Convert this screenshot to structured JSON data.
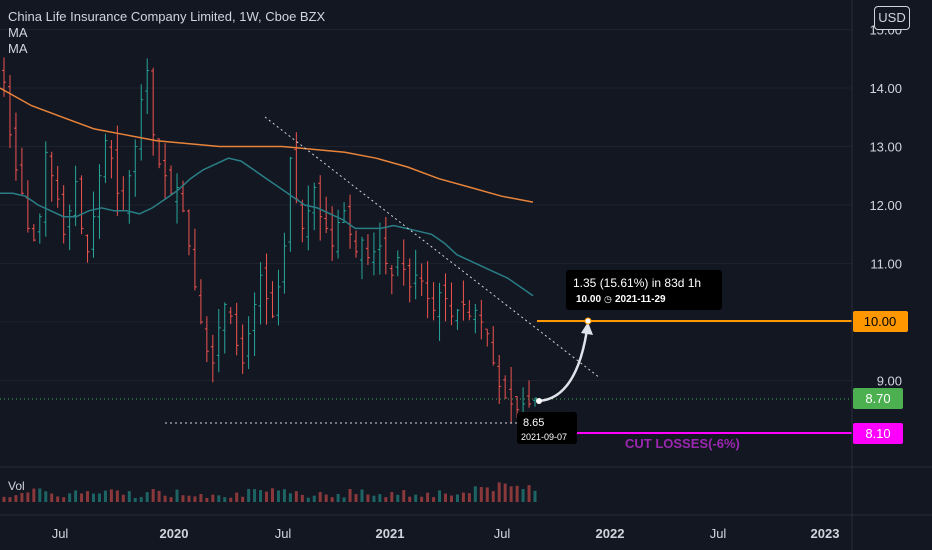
{
  "header": {
    "symbol_line": "China Life Insurance Company Limited, 1W, Cboe BZX",
    "indicators": [
      "MA",
      "MA"
    ],
    "currency_button": "USD"
  },
  "volume_pane": {
    "label": "Vol"
  },
  "colors": {
    "background": "#131722",
    "up": "#26a69a",
    "down": "#ef5350",
    "ma_fast": "#2a7e86",
    "ma_slow": "#e8843a",
    "target_line": "#ff9800",
    "stop_line": "#ff00ff",
    "current_price": "#4caf50"
  },
  "chart_data": {
    "type": "candlestick",
    "title": "China Life Insurance Company Limited, 1W, Cboe BZX",
    "yaxis": {
      "ticks": [
        "9.00",
        "10.00",
        "11.00",
        "12.00",
        "13.00",
        "14.00",
        "15.00"
      ],
      "range": [
        7.4,
        15.5
      ]
    },
    "xaxis": {
      "ticks": [
        "Jul",
        "2020",
        "Jul",
        "2021",
        "Jul",
        "2022",
        "Jul",
        "2023"
      ]
    },
    "current_price": "8.70",
    "target_price": "10.00",
    "stop_price": "8.10",
    "stop_label": "CUT LOSSES(-6%)",
    "measure": {
      "change": "1.35 (15.61%) in 83d 1h",
      "end_value": "10.00",
      "end_date": "2021-11-29",
      "start_value": "8.65",
      "start_date": "2021-09-07"
    },
    "support_level": 8.35,
    "closes": [
      14.1,
      13.2,
      12.6,
      12.2,
      11.6,
      11.4,
      11.8,
      12.9,
      12.5,
      12.1,
      11.5,
      11.9,
      12.4,
      11.6,
      11.2,
      11.8,
      12.5,
      13.1,
      12.8,
      12.2,
      11.9,
      12.5,
      13.0,
      13.8,
      14.3,
      13.2,
      12.7,
      12.5,
      12.2,
      12.3,
      11.9,
      11.3,
      10.6,
      10.0,
      9.5,
      9.3,
      9.9,
      10.3,
      10.1,
      9.6,
      9.3,
      9.8,
      10.3,
      10.8,
      10.4,
      10.1,
      10.6,
      11.3,
      12.8,
      12.1,
      11.6,
      11.9,
      12.3,
      11.8,
      11.6,
      11.3,
      11.7,
      11.9,
      11.5,
      11.2,
      11.4,
      11.1,
      11.2,
      11.3,
      11.0,
      10.8,
      11.1,
      10.9,
      10.6,
      10.8,
      10.7,
      10.4,
      10.2,
      10.5,
      10.4,
      10.1,
      10.2,
      10.3,
      10.1,
      10.2,
      10.0,
      9.8,
      9.3,
      8.9,
      8.7,
      8.6,
      8.5,
      8.6,
      8.6,
      8.7
    ],
    "ma_fast": [
      12.2,
      12.2,
      12.15,
      12.0,
      11.9,
      11.8,
      11.8,
      11.9,
      11.95,
      11.9,
      11.9,
      11.85,
      11.95,
      12.1,
      12.25,
      12.45,
      12.6,
      12.7,
      12.8,
      12.75,
      12.6,
      12.45,
      12.3,
      12.15,
      12.0,
      11.95,
      11.85,
      11.75,
      11.6,
      11.6,
      11.6,
      11.65,
      11.6,
      11.55,
      11.5,
      11.35,
      11.15,
      11.05,
      10.95,
      10.85,
      10.75,
      10.6,
      10.45
    ],
    "ma_slow": [
      14.0,
      13.7,
      13.5,
      13.3,
      13.2,
      13.1,
      13.05,
      13.0,
      13.0,
      13.0,
      12.95,
      12.9,
      12.8,
      12.65,
      12.45,
      12.3,
      12.15,
      12.05
    ]
  }
}
